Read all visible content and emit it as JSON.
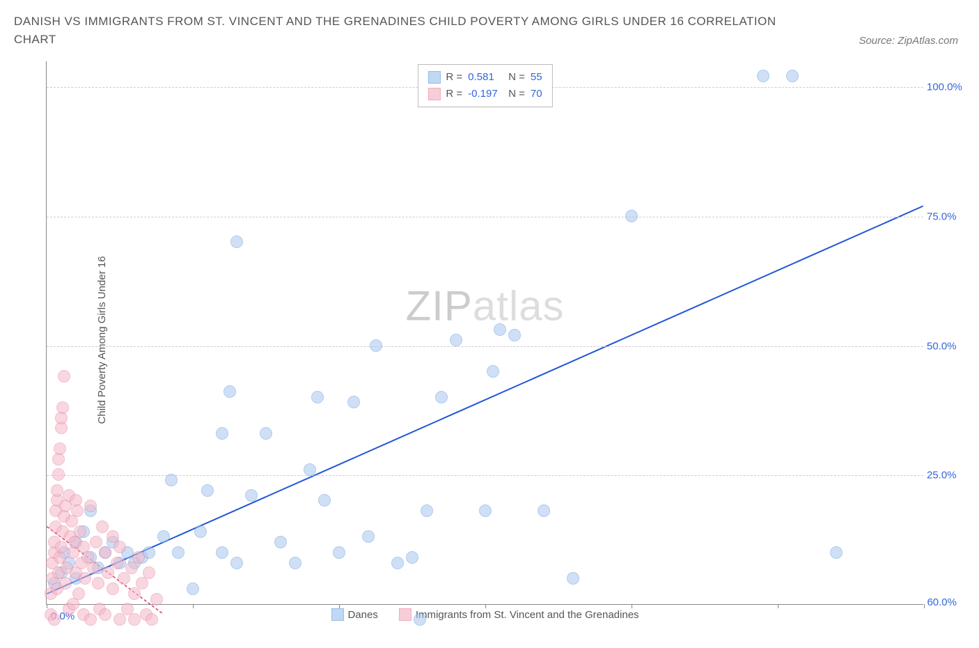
{
  "title": "DANISH VS IMMIGRANTS FROM ST. VINCENT AND THE GRENADINES CHILD POVERTY AMONG GIRLS UNDER 16 CORRELATION CHART",
  "source": "Source: ZipAtlas.com",
  "watermark_zip": "ZIP",
  "watermark_rest": "atlas",
  "chart": {
    "type": "scatter",
    "y_label": "Child Poverty Among Girls Under 16",
    "xlim": [
      0,
      60
    ],
    "ylim": [
      0,
      105
    ],
    "x_ticks": [
      0,
      10,
      20,
      30,
      40,
      50,
      60
    ],
    "y_ticks": [
      25,
      50,
      75,
      100
    ],
    "y_tick_labels": [
      "25.0%",
      "50.0%",
      "75.0%",
      "100.0%"
    ],
    "x_first_label": "0.0%",
    "x_last_label": "60.0%",
    "grid_color": "#dddddd",
    "background": "#ffffff",
    "point_radius": 9,
    "series": [
      {
        "name": "Danes",
        "fill": "#a8c8f0",
        "stroke": "#6fa1dd",
        "fill_opacity": 0.55,
        "r_label": "R =",
        "r_value": "0.581",
        "n_label": "N =",
        "n_value": "55",
        "value_color": "#3366dd",
        "trend": {
          "x1": 0,
          "y1": 2,
          "x2": 60,
          "y2": 77,
          "color": "#1f57d6",
          "width": 2,
          "dash": ""
        },
        "points": [
          [
            0.5,
            4
          ],
          [
            1,
            6
          ],
          [
            1.2,
            10
          ],
          [
            1.5,
            8
          ],
          [
            2,
            5
          ],
          [
            2,
            12
          ],
          [
            2.5,
            14
          ],
          [
            3,
            9
          ],
          [
            3,
            18
          ],
          [
            3.5,
            7
          ],
          [
            4,
            10
          ],
          [
            4.5,
            12
          ],
          [
            5,
            8
          ],
          [
            5.5,
            10
          ],
          [
            6,
            8
          ],
          [
            6.5,
            9
          ],
          [
            7,
            10
          ],
          [
            8,
            13
          ],
          [
            8.5,
            24
          ],
          [
            9,
            10
          ],
          [
            10,
            3
          ],
          [
            10.5,
            14
          ],
          [
            11,
            22
          ],
          [
            12,
            10
          ],
          [
            12,
            33
          ],
          [
            12.5,
            41
          ],
          [
            13,
            8
          ],
          [
            13,
            70
          ],
          [
            14,
            21
          ],
          [
            15,
            33
          ],
          [
            16,
            12
          ],
          [
            17,
            8
          ],
          [
            18,
            26
          ],
          [
            18.5,
            40
          ],
          [
            19,
            20
          ],
          [
            20,
            10
          ],
          [
            21,
            39
          ],
          [
            22,
            13
          ],
          [
            22.5,
            50
          ],
          [
            24,
            8
          ],
          [
            25,
            9
          ],
          [
            25.5,
            -3
          ],
          [
            26,
            18
          ],
          [
            27,
            40
          ],
          [
            28,
            51
          ],
          [
            30,
            18
          ],
          [
            30.5,
            45
          ],
          [
            31,
            53
          ],
          [
            32,
            52
          ],
          [
            34,
            18
          ],
          [
            36,
            5
          ],
          [
            40,
            75
          ],
          [
            49,
            102
          ],
          [
            51,
            102
          ],
          [
            54,
            10
          ]
        ]
      },
      {
        "name": "Immigrants from St. Vincent and the Grenadines",
        "fill": "#f5b8c8",
        "stroke": "#e98aa5",
        "fill_opacity": 0.55,
        "r_label": "R =",
        "r_value": "-0.197",
        "n_label": "N =",
        "n_value": "70",
        "value_color": "#3366dd",
        "trend": {
          "x1": 0,
          "y1": 15,
          "x2": 8,
          "y2": -2,
          "color": "#d6336c",
          "width": 1.5,
          "dash": "4 3"
        },
        "points": [
          [
            0.3,
            -2
          ],
          [
            0.3,
            2
          ],
          [
            0.4,
            5
          ],
          [
            0.4,
            8
          ],
          [
            0.5,
            10
          ],
          [
            0.5,
            12
          ],
          [
            0.5,
            -3
          ],
          [
            0.6,
            15
          ],
          [
            0.6,
            18
          ],
          [
            0.7,
            3
          ],
          [
            0.7,
            20
          ],
          [
            0.7,
            22
          ],
          [
            0.8,
            6
          ],
          [
            0.8,
            25
          ],
          [
            0.8,
            28
          ],
          [
            0.9,
            30
          ],
          [
            0.9,
            9
          ],
          [
            1.0,
            11
          ],
          [
            1.0,
            34
          ],
          [
            1.0,
            36
          ],
          [
            1.1,
            14
          ],
          [
            1.1,
            38
          ],
          [
            1.2,
            44
          ],
          [
            1.2,
            17
          ],
          [
            1.3,
            19
          ],
          [
            1.3,
            4
          ],
          [
            1.4,
            7
          ],
          [
            1.5,
            21
          ],
          [
            1.5,
            -1
          ],
          [
            1.6,
            13
          ],
          [
            1.7,
            16
          ],
          [
            1.8,
            10
          ],
          [
            1.8,
            0
          ],
          [
            1.9,
            12
          ],
          [
            2.0,
            6
          ],
          [
            2.0,
            20
          ],
          [
            2.1,
            18
          ],
          [
            2.2,
            2
          ],
          [
            2.3,
            14
          ],
          [
            2.4,
            8
          ],
          [
            2.5,
            11
          ],
          [
            2.5,
            -2
          ],
          [
            2.6,
            5
          ],
          [
            2.8,
            9
          ],
          [
            3.0,
            -3
          ],
          [
            3.0,
            19
          ],
          [
            3.2,
            7
          ],
          [
            3.4,
            12
          ],
          [
            3.5,
            4
          ],
          [
            3.6,
            -1
          ],
          [
            3.8,
            15
          ],
          [
            4.0,
            10
          ],
          [
            4.0,
            -2
          ],
          [
            4.2,
            6
          ],
          [
            4.5,
            3
          ],
          [
            4.5,
            13
          ],
          [
            4.8,
            8
          ],
          [
            5.0,
            -3
          ],
          [
            5.0,
            11
          ],
          [
            5.3,
            5
          ],
          [
            5.5,
            -1
          ],
          [
            5.8,
            7
          ],
          [
            6.0,
            2
          ],
          [
            6.0,
            -3
          ],
          [
            6.3,
            9
          ],
          [
            6.5,
            4
          ],
          [
            6.8,
            -2
          ],
          [
            7.0,
            6
          ],
          [
            7.2,
            -3
          ],
          [
            7.5,
            1
          ]
        ]
      }
    ],
    "bottom_legend": [
      {
        "label": "Danes",
        "fill": "#a8c8f0",
        "stroke": "#6fa1dd"
      },
      {
        "label": "Immigrants from St. Vincent and the Grenadines",
        "fill": "#f5b8c8",
        "stroke": "#e98aa5"
      }
    ]
  }
}
